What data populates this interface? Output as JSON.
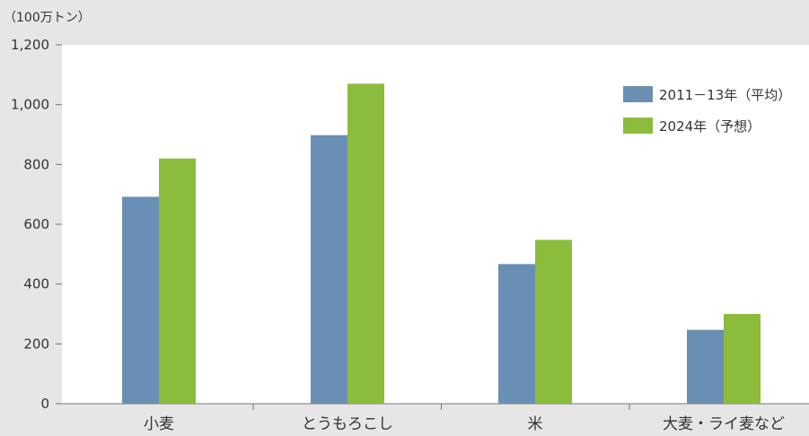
{
  "chart_data": {
    "type": "bar",
    "unit_label": "（100万トン）",
    "categories": [
      "小麦",
      "とうもろこし",
      "米",
      "大麦・ライ麦など"
    ],
    "series": [
      {
        "name": "2011－13年（平均）",
        "color": "#6a8fb5",
        "values": [
          692,
          898,
          467,
          247
        ]
      },
      {
        "name": "2024年（予想）",
        "color": "#8cbc3c",
        "values": [
          820,
          1070,
          548,
          300
        ]
      }
    ],
    "y_ticks": [
      "0",
      "200",
      "400",
      "600",
      "800",
      "1,000",
      "1,200"
    ],
    "y_tick_values": [
      0,
      200,
      400,
      600,
      800,
      1000,
      1200
    ],
    "ylim": [
      0,
      1200
    ],
    "grid": false,
    "legend_position": "top-right"
  }
}
